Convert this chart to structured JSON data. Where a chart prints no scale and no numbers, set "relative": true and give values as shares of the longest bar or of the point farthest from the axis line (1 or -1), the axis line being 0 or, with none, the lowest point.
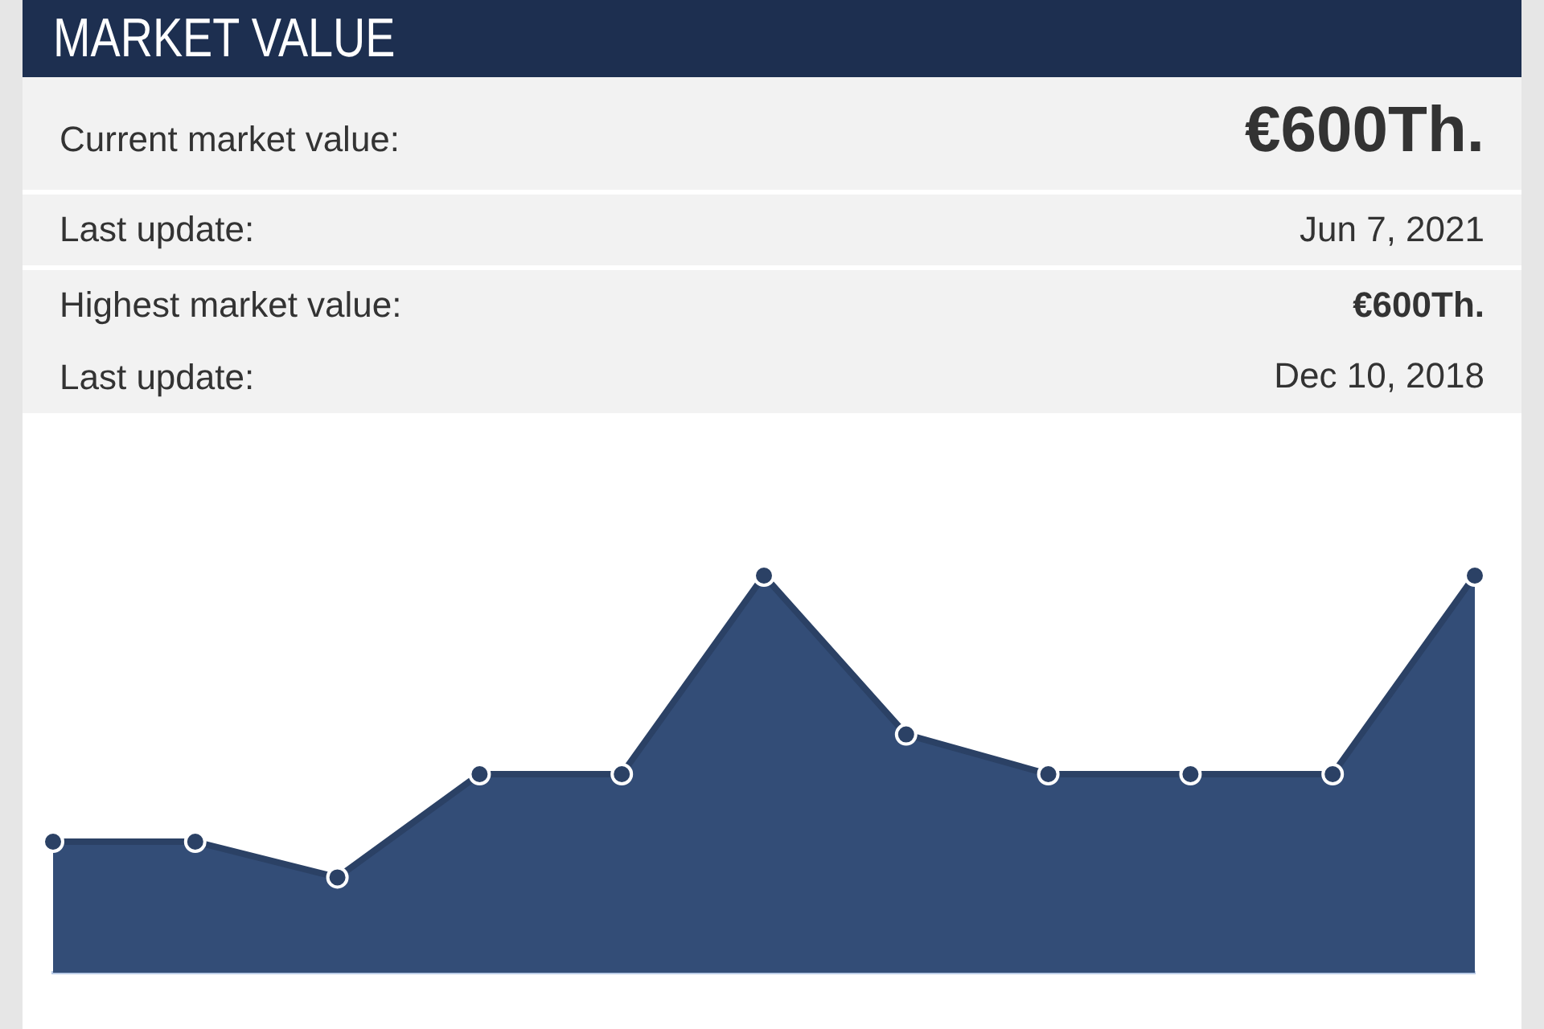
{
  "chart_data": {
    "type": "area",
    "title": "MARKET VALUE",
    "annotations": [
      "Current market value:",
      "€600Th.",
      "Last update:",
      "Jun 7, 2021",
      "Highest market value:",
      "€600Th.",
      "Last update:",
      "Dec 10, 2018"
    ],
    "categories": [
      null,
      null,
      null,
      null,
      null,
      null,
      null,
      null,
      null,
      null,
      null
    ],
    "values": [
      0.33,
      0.33,
      0.24,
      0.5,
      0.5,
      1,
      0.6,
      0.5,
      0.5,
      0.5,
      1
    ],
    "color": "#334d77",
    "relative": true,
    "marker": "circle"
  }
}
